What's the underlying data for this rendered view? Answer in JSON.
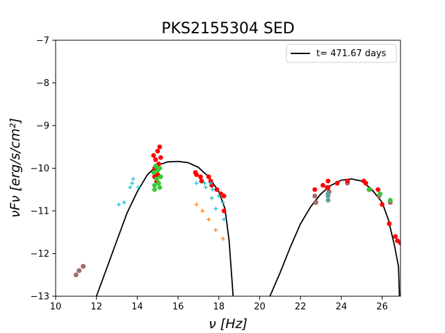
{
  "chart_data": {
    "type": "scatter",
    "title": "PKS2155304  SED",
    "xlabel": "ν  [Hz]",
    "ylabel": "νFν  [erg/s/cm²]",
    "xlim": [
      10,
      26.9
    ],
    "ylim": [
      -13,
      -7
    ],
    "x_ticks": [
      "10",
      "12",
      "14",
      "16",
      "18",
      "20",
      "22",
      "24",
      "26"
    ],
    "y_ticks": [
      "−7",
      "−8",
      "−9",
      "−10",
      "−11",
      "−12",
      "−13"
    ],
    "grid": false,
    "legend_position": "top-right",
    "colors": {
      "model": "#000000",
      "red": "#ff0000",
      "grey": "#808080",
      "cyan": "#17becf",
      "orange": "#ff7f0e",
      "green": "#32cd32",
      "steelblue": "#5f9ea0"
    },
    "model_curve": {
      "name": "t= 471.67 days",
      "segments": [
        [
          [
            12.0,
            -13.0
          ],
          [
            12.5,
            -12.35
          ],
          [
            13.0,
            -11.7
          ],
          [
            13.5,
            -11.05
          ],
          [
            14.0,
            -10.55
          ],
          [
            14.5,
            -10.15
          ],
          [
            15.0,
            -9.93
          ],
          [
            15.5,
            -9.85
          ],
          [
            16.0,
            -9.84
          ],
          [
            16.5,
            -9.87
          ],
          [
            17.0,
            -9.98
          ],
          [
            17.5,
            -10.2
          ],
          [
            18.0,
            -10.55
          ],
          [
            18.3,
            -10.95
          ],
          [
            18.5,
            -11.7
          ],
          [
            18.7,
            -13.0
          ]
        ],
        [
          [
            20.5,
            -13.0
          ],
          [
            21.0,
            -12.45
          ],
          [
            21.5,
            -11.85
          ],
          [
            22.0,
            -11.3
          ],
          [
            22.5,
            -10.9
          ],
          [
            23.0,
            -10.6
          ],
          [
            23.5,
            -10.4
          ],
          [
            24.0,
            -10.28
          ],
          [
            24.5,
            -10.25
          ],
          [
            25.0,
            -10.3
          ],
          [
            25.5,
            -10.5
          ],
          [
            26.0,
            -10.8
          ],
          [
            26.3,
            -11.2
          ],
          [
            26.6,
            -11.8
          ],
          [
            26.8,
            -12.3
          ],
          [
            26.85,
            -13.0
          ]
        ]
      ]
    },
    "series": [
      {
        "color_key": "grey",
        "marker": "circle",
        "points": [
          [
            11.0,
            -12.5
          ],
          [
            11.15,
            -12.4
          ],
          [
            11.35,
            -12.3
          ],
          [
            22.7,
            -10.65
          ],
          [
            22.75,
            -10.8
          ],
          [
            23.3,
            -10.45
          ],
          [
            23.4,
            -10.55
          ],
          [
            23.8,
            -10.35
          ],
          [
            24.3,
            -10.35
          ],
          [
            25.4,
            -10.5
          ],
          [
            25.85,
            -10.65
          ],
          [
            26.4,
            -10.8
          ]
        ]
      },
      {
        "color_key": "red",
        "marker": "circle",
        "points": [
          [
            14.8,
            -9.7
          ],
          [
            14.85,
            -10.0
          ],
          [
            14.9,
            -9.8
          ],
          [
            14.95,
            -10.3
          ],
          [
            15.0,
            -9.6
          ],
          [
            15.05,
            -9.9
          ],
          [
            15.1,
            -9.5
          ],
          [
            15.15,
            -9.75
          ],
          [
            14.85,
            -10.2
          ],
          [
            15.0,
            -10.15
          ],
          [
            16.85,
            -10.1
          ],
          [
            16.9,
            -10.15
          ],
          [
            17.1,
            -10.2
          ],
          [
            17.15,
            -10.3
          ],
          [
            17.5,
            -10.2
          ],
          [
            17.6,
            -10.3
          ],
          [
            17.65,
            -10.4
          ],
          [
            17.9,
            -10.5
          ],
          [
            18.1,
            -10.6
          ],
          [
            18.25,
            -10.65
          ],
          [
            18.25,
            -11.0
          ],
          [
            22.7,
            -10.5
          ],
          [
            23.1,
            -10.4
          ],
          [
            23.35,
            -10.3
          ],
          [
            23.35,
            -10.45
          ],
          [
            23.8,
            -10.35
          ],
          [
            24.3,
            -10.3
          ],
          [
            25.1,
            -10.3
          ],
          [
            25.2,
            -10.35
          ],
          [
            25.8,
            -10.5
          ],
          [
            26.0,
            -10.85
          ],
          [
            26.35,
            -11.3
          ],
          [
            26.65,
            -11.6
          ],
          [
            26.9,
            -11.75
          ],
          [
            26.75,
            -11.7
          ]
        ]
      },
      {
        "color_key": "green",
        "marker": "circle",
        "points": [
          [
            14.8,
            -10.1
          ],
          [
            14.85,
            -10.4
          ],
          [
            14.9,
            -9.95
          ],
          [
            14.95,
            -10.25
          ],
          [
            15.0,
            -10.05
          ],
          [
            15.05,
            -10.35
          ],
          [
            15.1,
            -10.0
          ],
          [
            15.15,
            -10.2
          ],
          [
            14.85,
            -10.5
          ],
          [
            15.1,
            -10.45
          ],
          [
            25.35,
            -10.5
          ],
          [
            25.9,
            -10.6
          ],
          [
            26.4,
            -10.75
          ]
        ]
      },
      {
        "color_key": "steelblue",
        "marker": "circle",
        "points": [
          [
            23.35,
            -10.6
          ],
          [
            23.35,
            -10.75
          ],
          [
            23.35,
            -10.65
          ]
        ]
      },
      {
        "color_key": "cyan",
        "marker": "plus",
        "points": [
          [
            13.1,
            -10.85
          ],
          [
            13.35,
            -10.8
          ],
          [
            13.65,
            -10.45
          ],
          [
            13.75,
            -10.35
          ],
          [
            13.8,
            -10.25
          ],
          [
            14.05,
            -10.45
          ],
          [
            16.9,
            -10.35
          ],
          [
            17.3,
            -10.35
          ],
          [
            17.35,
            -10.45
          ],
          [
            17.6,
            -10.35
          ],
          [
            17.7,
            -10.5
          ],
          [
            17.65,
            -10.7
          ],
          [
            18.0,
            -10.65
          ],
          [
            18.2,
            -10.8
          ],
          [
            17.85,
            -10.95
          ],
          [
            18.25,
            -11.2
          ]
        ]
      },
      {
        "color_key": "orange",
        "marker": "plus",
        "points": [
          [
            16.9,
            -10.85
          ],
          [
            17.2,
            -11.0
          ],
          [
            17.5,
            -11.2
          ],
          [
            17.85,
            -11.45
          ],
          [
            18.2,
            -11.65
          ]
        ]
      }
    ]
  }
}
